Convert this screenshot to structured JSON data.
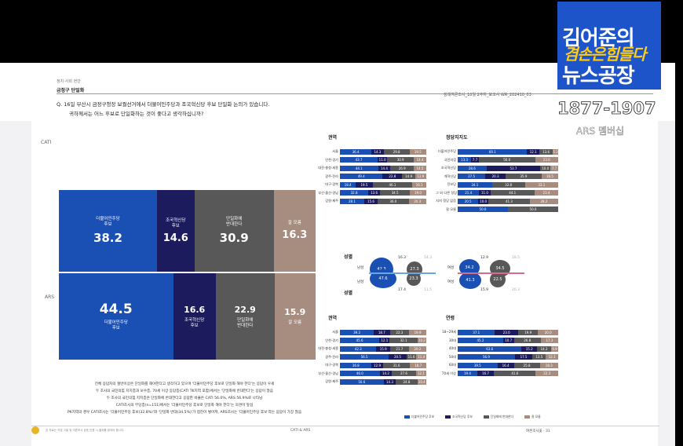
{
  "header": {
    "category": "정치·사회 현안",
    "title": "금정구 단일화",
    "report": "정례여론조사_10월 2주차_보고서  WR_202410_03"
  },
  "question": {
    "line1": "Q. 16일 부산시 금정구청장 보궐선거에서 더불어민주당과 조국혁신당 후보 단일화 논의가 있습니다.",
    "line2": "귀하께서는 어느 후보로 단일화하는 것이 좋다고 생각하십니까?"
  },
  "method_labels": {
    "cati": "CATI",
    "ars": "ARS"
  },
  "main_bars": {
    "cati": [
      {
        "label": "더불어민주당\n후보",
        "value": "38.2",
        "pct": 38.2
      },
      {
        "label": "조국혁신당\n후보",
        "value": "14.6",
        "pct": 14.6
      },
      {
        "label": "단일화에\n반대한다",
        "value": "30.9",
        "pct": 30.9
      },
      {
        "label": "잘 모름",
        "value": "16.3",
        "pct": 16.3
      }
    ],
    "ars": [
      {
        "label": "더불어민주당\n후보",
        "value": "44.5",
        "pct": 44.5
      },
      {
        "label": "조국혁신당\n후보",
        "value": "16.6",
        "pct": 16.6
      },
      {
        "label": "단일화에\n반대한다",
        "value": "22.9",
        "pct": 22.9
      },
      {
        "label": "잘 모름",
        "value": "15.9",
        "pct": 15.9
      }
    ]
  },
  "summary": [
    "전체 응답자의 절반이상은 단일화를 해야한다고 생각하고 있으며 '더불어민주당 후보로 단일화 해야 한다'는 응답이 우세",
    "두 조사의 국민의힘 지지층과 보수층, 70세 이상 응답층(CATI TK지역 포함)에서는 '단일화에 반대한다'는 응답이 많음",
    "두 조사의 국민의힘 지지층은 단일화에 반대한다고 응답한 비율은 CATI 56.0%, ARS 56.9%로 나타남",
    "CATI조사의 무당층(n=151)에서는 '더불어민주당 후보로 단일화 해야 한다'는 의견이 앞섬",
    "PK지역의 경우 CATI조사는 '더불어민주당 후보(32.8%)'와 '단일화 반대(34.5%)'가 접전이 벌어져, ARS조사는 '더불어민주당 후보'라는 응답이 가장 많음"
  ],
  "sections": {
    "region": "권역",
    "party": "정당지지도",
    "gender": "성별",
    "age": "연령"
  },
  "cati_region": [
    {
      "label": "서울",
      "v": [
        36.4,
        14.3,
        29.8,
        19.5
      ]
    },
    {
      "label": "인천·경기",
      "v": [
        43.7,
        11.0,
        30.9,
        14.4
      ]
    },
    {
      "label": "대전·충청·세종",
      "v": [
        44.1,
        14.4,
        26.9,
        14.5
      ]
    },
    {
      "label": "광주·전라",
      "v": [
        49.4,
        22.8,
        14.9,
        12.9
      ]
    },
    {
      "label": "대구·경북",
      "v": [
        18.4,
        19.5,
        46.1,
        16.1
      ]
    },
    {
      "label": "부산·울산·경남",
      "v": [
        32.8,
        13.6,
        34.5,
        19.0
      ]
    },
    {
      "label": "강원·제주",
      "v": [
        28.1,
        15.6,
        36.0,
        20.3
      ]
    }
  ],
  "cati_party": [
    {
      "label": "더불어민주당",
      "v": [
        69.1,
        12.1,
        13.6,
        5.2
      ]
    },
    {
      "label": "국민의힘",
      "v": [
        13.3,
        7.7,
        56.0,
        23.0
      ]
    },
    {
      "label": "조국혁신당",
      "v": [
        28.6,
        53.7,
        10.0,
        7.7
      ]
    },
    {
      "label": "개혁신당",
      "v": [
        27.5,
        20.3,
        35.9,
        16.5
      ]
    },
    {
      "label": "진보당",
      "v": [
        34.1,
        0,
        32.8,
        33.1
      ]
    },
    {
      "label": "그 외 다른 정당",
      "v": [
        21.4,
        11.0,
        44.1,
        23.4
      ]
    },
    {
      "label": "지지 정당 없음",
      "v": [
        20.5,
        10.0,
        41.3,
        28.2
      ]
    },
    {
      "label": "잘 모름",
      "v": [
        50.0,
        0,
        50.0,
        0
      ]
    }
  ],
  "cati_party_text": [
    [
      "69.1",
      "12.1",
      "13.6",
      "5.2"
    ],
    [
      "13.3",
      "7.7",
      "56.0",
      "23.0"
    ],
    [
      "28.6",
      "53.7",
      "10.0",
      "7.7"
    ],
    [
      "27.5",
      "20.3",
      "35.9",
      "16.5"
    ],
    [
      "34.1",
      "",
      "32.8",
      "33.1"
    ],
    [
      "21.4",
      "11.0",
      "44.1",
      "23.4"
    ],
    [
      "20.5",
      "10.0",
      "41.3",
      "28.2"
    ],
    [
      "50.0",
      "",
      "50.0",
      ""
    ]
  ],
  "cati_gender": {
    "title": "성별",
    "male": {
      "label": "남성",
      "v": [
        "42.3",
        "16.3",
        "27.3",
        "14.3"
      ]
    },
    "female_lbl": "남성",
    "female": {
      "label": "여성",
      "v": [
        "34.2",
        "12.9",
        "34.5",
        "18.5"
      ]
    },
    "ars_female": {
      "label": "여성",
      "v": [
        "41.3",
        "15.9",
        "22.5",
        "20.3"
      ]
    },
    "ars_male": {
      "v": [
        "47.6",
        "17.4",
        "23.3",
        "11.5"
      ]
    }
  },
  "ars_region": [
    {
      "label": "서울",
      "v": [
        39.2,
        18.7,
        22.3,
        19.9
      ]
    },
    {
      "label": "인천·경기",
      "v": [
        45.6,
        12.1,
        32.1,
        10.2
      ]
    },
    {
      "label": "대전·충청·세종",
      "v": [
        42.3,
        15.9,
        21.7,
        20.2
      ]
    },
    {
      "label": "광주·전라",
      "v": [
        56.5,
        20.5,
        11.6,
        11.4
      ]
    },
    {
      "label": "대구·경북",
      "v": [
        36.8,
        12.9,
        31.6,
        18.7
      ]
    },
    {
      "label": "부산·울산·경남",
      "v": [
        46.0,
        14.2,
        27.6,
        12.1
      ]
    },
    {
      "label": "강원·제주",
      "v": [
        50.6,
        14.3,
        24.8,
        10.4
      ]
    }
  ],
  "ars_age": [
    {
      "label": "18~29세",
      "v": [
        37.1,
        23.0,
        19.9,
        20.0
      ]
    },
    {
      "label": "30대",
      "v": [
        45.2,
        10.7,
        26.8,
        17.3
      ]
    },
    {
      "label": "40대",
      "v": [
        63.6,
        15.2,
        14.2,
        6.9
      ]
    },
    {
      "label": "50대",
      "v": [
        56.9,
        17.5,
        13.5,
        12.1
      ]
    },
    {
      "label": "60대",
      "v": [
        39.5,
        16.4,
        25.8,
        18.3
      ]
    },
    {
      "label": "70세 이상",
      "v": [
        19.4,
        16.7,
        41.6,
        22.3
      ]
    }
  ],
  "legend": [
    "더불어민주당 후보",
    "조국혁신당 후보",
    "단일화에 반대한다",
    "잘 모름"
  ],
  "colors": {
    "dem": "#1a4fb4",
    "rebuild": "#1c1b5e",
    "oppose": "#585858",
    "unsure": "#a78c80"
  },
  "footer": {
    "left": "본 자료는 직접 고발 및 여론조사 공표 인용 시 출처를 밝혀야 합니다.",
    "center": "CATI & ARS",
    "right": "여론조사꽃 · 31"
  },
  "logo": {
    "line1": "김어준의",
    "line2": "겸손은힘들다",
    "line3": "뉴스공장",
    "phone": "1877-1907",
    "ars": "ARS 멤버십"
  }
}
